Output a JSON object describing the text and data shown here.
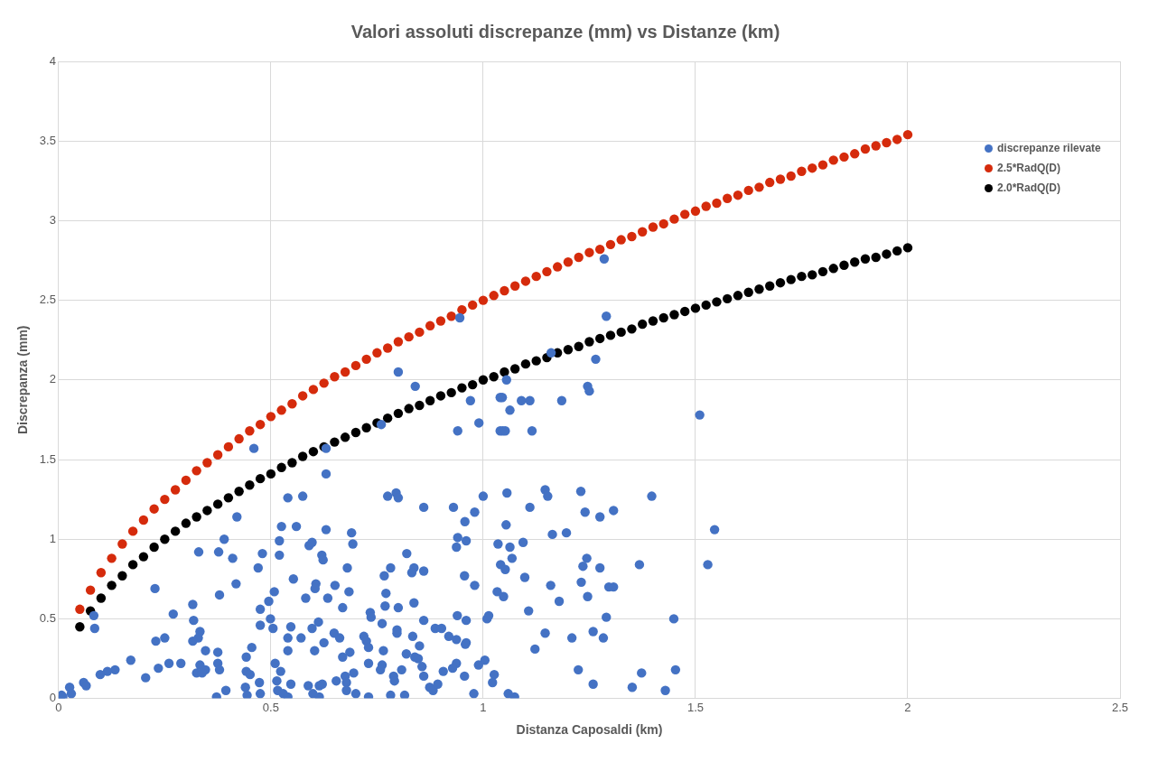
{
  "chart_data": {
    "type": "scatter",
    "title": "Valori assoluti discrepanze (mm) vs Distanze (km)",
    "xlabel": "Distanza Caposaldi (km)",
    "ylabel": "Discrepanza (mm)",
    "x": [
      0.05,
      0.075,
      0.1,
      0.125,
      0.15,
      0.175,
      0.2,
      0.225,
      0.25,
      0.275,
      0.3,
      0.325,
      0.35,
      0.375,
      0.4,
      0.425,
      0.45,
      0.475,
      0.5,
      0.525,
      0.55,
      0.575,
      0.6,
      0.625,
      0.65,
      0.675,
      0.7,
      0.725,
      0.75,
      0.775,
      0.8,
      0.825,
      0.85,
      0.875,
      0.9,
      0.925,
      0.95,
      0.975,
      1.0,
      1.025,
      1.05,
      1.075,
      1.1,
      1.125,
      1.15,
      1.175,
      1.2,
      1.225,
      1.25,
      1.275,
      1.3,
      1.325,
      1.35,
      1.375,
      1.4,
      1.425,
      1.45,
      1.475,
      1.5,
      1.525,
      1.55,
      1.575,
      1.6,
      1.625,
      1.65,
      1.675,
      1.7,
      1.725,
      1.75,
      1.775,
      1.8,
      1.825,
      1.85,
      1.875,
      1.9,
      1.925,
      1.95,
      1.975,
      2.0
    ],
    "series": [
      {
        "name": "discrepanze rilevate",
        "color": "#4472c4",
        "x": [
          0.945,
          0.8,
          0.84,
          0.97,
          0.99,
          0.94,
          1.04,
          1.04,
          0.76,
          0.63,
          0.63,
          0.54,
          0.575,
          0.775,
          0.795,
          0.8,
          0.86,
          0.93,
          0.98,
          1.0,
          0.46,
          1.285,
          1.29,
          1.16,
          1.265,
          1.055,
          1.045,
          1.09,
          1.11,
          1.063,
          1.185,
          1.246,
          1.25,
          1.046,
          1.052,
          1.115,
          1.51,
          1.056,
          1.146,
          1.152,
          1.23,
          1.397,
          1.11,
          1.24,
          1.307,
          0.42,
          0.39,
          0.33,
          0.377,
          0.41,
          0.48,
          0.52,
          0.52,
          0.47,
          0.227,
          0.418,
          0.379,
          0.508,
          0.495,
          0.475,
          0.316,
          0.27,
          0.318,
          0.499,
          0.475,
          0.505,
          0.083,
          0.085,
          0.333,
          0.329,
          0.25,
          0.229,
          0.316,
          0.346,
          0.375,
          0.455,
          0.442,
          0.17,
          0.26,
          0.288,
          0.375,
          0.379,
          0.333,
          0.346,
          0.325,
          0.338,
          0.235,
          0.51,
          0.442,
          0.451,
          0.133,
          0.115,
          0.098,
          0.205,
          0.473,
          0.059,
          0.065,
          0.026,
          0.03,
          0.007,
          0.44,
          0.394,
          0.372,
          0.444,
          0.475,
          0.516,
          0.523,
          0.525,
          0.56,
          0.63,
          0.69,
          0.957,
          0.94,
          0.96,
          0.59,
          0.597,
          0.693,
          0.937,
          0.62,
          0.623,
          0.82,
          0.68,
          0.782,
          0.767,
          0.837,
          0.832,
          0.86,
          0.956,
          0.98,
          0.553,
          0.606,
          0.604,
          0.651,
          0.684,
          0.771,
          0.582,
          0.634,
          0.837,
          0.769,
          0.8,
          0.669,
          0.734,
          0.736,
          0.939,
          0.96,
          1.013,
          1.009,
          0.86,
          0.762,
          0.612,
          0.597,
          0.547,
          0.797,
          0.797,
          0.887,
          0.902,
          0.54,
          0.571,
          0.649,
          0.662,
          0.719,
          0.725,
          0.73,
          0.834,
          0.919,
          0.937,
          0.958,
          0.96,
          0.625,
          0.603,
          0.54,
          0.765,
          0.85,
          0.686,
          0.669,
          0.819,
          0.839,
          0.847,
          0.856,
          0.73,
          0.762,
          0.758,
          0.808,
          0.789,
          0.791,
          0.937,
          0.928,
          1.004,
          0.989,
          0.906,
          0.86,
          0.956,
          1.026,
          1.022,
          0.695,
          0.675,
          0.678,
          0.654,
          0.514,
          0.547,
          0.588,
          0.614,
          0.621,
          0.529,
          0.54,
          0.599,
          0.614,
          0.678,
          0.7,
          0.73,
          0.782,
          0.815,
          0.874,
          0.882,
          0.893,
          0.978,
          1.275,
          1.054,
          1.545,
          1.163,
          1.196,
          1.035,
          1.063,
          1.094,
          1.041,
          1.052,
          1.068,
          1.244,
          1.235,
          1.275,
          1.368,
          1.529,
          1.098,
          1.159,
          1.231,
          1.033,
          1.048,
          1.179,
          1.246,
          1.296,
          1.307,
          1.107,
          1.29,
          1.449,
          1.146,
          1.209,
          1.259,
          1.283,
          1.122,
          1.224,
          1.373,
          1.453,
          1.259,
          1.351,
          1.429,
          1.059,
          1.074,
          0.01
        ],
        "values": [
          2.39,
          2.05,
          1.96,
          1.87,
          1.73,
          1.68,
          1.89,
          1.68,
          1.72,
          1.57,
          1.41,
          1.26,
          1.27,
          1.27,
          1.29,
          1.26,
          1.2,
          1.2,
          1.17,
          1.27,
          1.57,
          2.76,
          2.4,
          2.17,
          2.13,
          2.0,
          1.89,
          1.87,
          1.87,
          1.81,
          1.87,
          1.96,
          1.93,
          1.68,
          1.68,
          1.68,
          1.78,
          1.29,
          1.31,
          1.27,
          1.3,
          1.27,
          1.2,
          1.17,
          1.18,
          1.14,
          1.0,
          0.92,
          0.92,
          0.88,
          0.91,
          0.99,
          0.9,
          0.82,
          0.69,
          0.72,
          0.65,
          0.67,
          0.61,
          0.56,
          0.59,
          0.53,
          0.49,
          0.5,
          0.46,
          0.44,
          0.52,
          0.44,
          0.42,
          0.38,
          0.38,
          0.36,
          0.36,
          0.3,
          0.29,
          0.32,
          0.26,
          0.24,
          0.22,
          0.22,
          0.22,
          0.18,
          0.21,
          0.18,
          0.16,
          0.16,
          0.19,
          0.22,
          0.17,
          0.15,
          0.18,
          0.17,
          0.15,
          0.13,
          0.1,
          0.1,
          0.08,
          0.07,
          0.03,
          0.02,
          0.07,
          0.05,
          0.01,
          0.02,
          0.03,
          0.05,
          0.17,
          1.08,
          1.08,
          1.06,
          1.04,
          1.11,
          1.01,
          0.99,
          0.96,
          0.98,
          0.97,
          0.95,
          0.9,
          0.87,
          0.91,
          0.82,
          0.82,
          0.77,
          0.82,
          0.79,
          0.8,
          0.77,
          0.71,
          0.75,
          0.72,
          0.69,
          0.71,
          0.67,
          0.66,
          0.63,
          0.63,
          0.6,
          0.58,
          0.57,
          0.57,
          0.54,
          0.51,
          0.52,
          0.49,
          0.52,
          0.5,
          0.49,
          0.47,
          0.48,
          0.44,
          0.45,
          0.43,
          0.41,
          0.44,
          0.44,
          0.38,
          0.38,
          0.41,
          0.38,
          0.39,
          0.36,
          0.32,
          0.39,
          0.39,
          0.37,
          0.34,
          0.35,
          0.35,
          0.3,
          0.3,
          0.3,
          0.33,
          0.29,
          0.26,
          0.28,
          0.26,
          0.25,
          0.2,
          0.22,
          0.21,
          0.18,
          0.18,
          0.14,
          0.11,
          0.22,
          0.19,
          0.24,
          0.21,
          0.17,
          0.14,
          0.14,
          0.15,
          0.1,
          0.16,
          0.14,
          0.1,
          0.11,
          0.11,
          0.09,
          0.08,
          0.08,
          0.09,
          0.03,
          0.01,
          0.03,
          0.01,
          0.05,
          0.03,
          0.01,
          0.02,
          0.02,
          0.07,
          0.05,
          0.09,
          0.03,
          1.14,
          1.09,
          1.06,
          1.03,
          1.04,
          0.97,
          0.95,
          0.98,
          0.84,
          0.81,
          0.88,
          0.88,
          0.83,
          0.82,
          0.84,
          0.84,
          0.76,
          0.71,
          0.73,
          0.67,
          0.64,
          0.61,
          0.64,
          0.7,
          0.7,
          0.55,
          0.51,
          0.5,
          0.41,
          0.38,
          0.42,
          0.38,
          0.31,
          0.18,
          0.16,
          0.18,
          0.09,
          0.07,
          0.05,
          0.03,
          0.01,
          0.01
        ]
      },
      {
        "name": "2.5*RadQ(D)",
        "color": "#d52b0c",
        "values": [
          0.56,
          0.68,
          0.79,
          0.88,
          0.97,
          1.05,
          1.12,
          1.19,
          1.25,
          1.31,
          1.37,
          1.43,
          1.48,
          1.53,
          1.58,
          1.63,
          1.68,
          1.72,
          1.77,
          1.81,
          1.85,
          1.9,
          1.94,
          1.98,
          2.02,
          2.05,
          2.09,
          2.13,
          2.17,
          2.2,
          2.24,
          2.27,
          2.3,
          2.34,
          2.37,
          2.4,
          2.44,
          2.47,
          2.5,
          2.53,
          2.56,
          2.59,
          2.62,
          2.65,
          2.68,
          2.71,
          2.74,
          2.77,
          2.8,
          2.82,
          2.85,
          2.88,
          2.9,
          2.93,
          2.96,
          2.98,
          3.01,
          3.04,
          3.06,
          3.09,
          3.11,
          3.14,
          3.16,
          3.19,
          3.21,
          3.24,
          3.26,
          3.28,
          3.31,
          3.33,
          3.35,
          3.38,
          3.4,
          3.42,
          3.45,
          3.47,
          3.49,
          3.51,
          3.54
        ]
      },
      {
        "name": "2.0*RadQ(D)",
        "color": "#000000",
        "values": [
          0.45,
          0.55,
          0.63,
          0.71,
          0.77,
          0.84,
          0.89,
          0.95,
          1.0,
          1.05,
          1.1,
          1.14,
          1.18,
          1.22,
          1.26,
          1.3,
          1.34,
          1.38,
          1.41,
          1.45,
          1.48,
          1.52,
          1.55,
          1.58,
          1.61,
          1.64,
          1.67,
          1.7,
          1.73,
          1.76,
          1.79,
          1.82,
          1.84,
          1.87,
          1.9,
          1.92,
          1.95,
          1.97,
          2.0,
          2.02,
          2.05,
          2.07,
          2.1,
          2.12,
          2.14,
          2.17,
          2.19,
          2.21,
          2.24,
          2.26,
          2.28,
          2.3,
          2.32,
          2.35,
          2.37,
          2.39,
          2.41,
          2.43,
          2.45,
          2.47,
          2.49,
          2.51,
          2.53,
          2.55,
          2.57,
          2.59,
          2.61,
          2.63,
          2.65,
          2.66,
          2.68,
          2.7,
          2.72,
          2.74,
          2.76,
          2.77,
          2.79,
          2.81,
          2.83
        ]
      }
    ],
    "xlim": [
      0,
      2.5
    ],
    "xticks": [
      0,
      0.5,
      1,
      1.5,
      2,
      2.5
    ],
    "ylim": [
      0,
      4
    ],
    "yticks": [
      0,
      0.5,
      1,
      1.5,
      2,
      2.5,
      3,
      3.5,
      4
    ],
    "grid": true,
    "legend": "top right",
    "marker": "circle"
  }
}
